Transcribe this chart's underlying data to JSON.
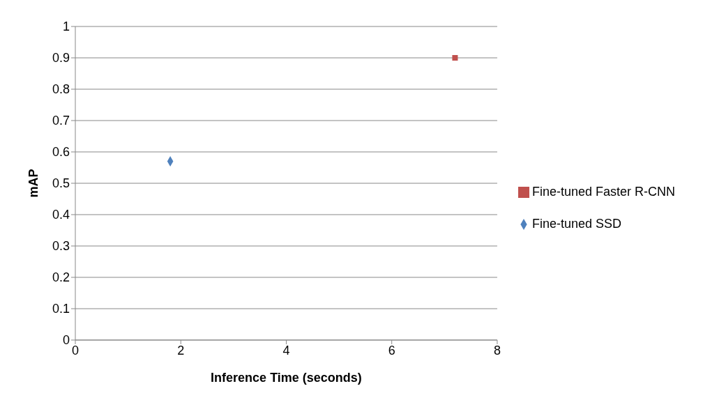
{
  "chart_data": {
    "type": "scatter",
    "xlabel": "Inference Time (seconds)",
    "ylabel": "mAP",
    "xlim": [
      0,
      8
    ],
    "xticks": [
      0,
      2,
      4,
      6,
      8
    ],
    "ylim": [
      0,
      1
    ],
    "yticks": [
      0,
      0.1,
      0.2,
      0.3,
      0.4,
      0.5,
      0.6,
      0.7,
      0.8,
      0.9,
      1
    ],
    "grid": "y",
    "legend": "right",
    "series": [
      {
        "name": "Fine-tuned SSD",
        "color": "#4f81bd",
        "marker": "diamond",
        "x": [
          1.8
        ],
        "values": [
          0.57
        ]
      },
      {
        "name": "Fine-tuned Faster R-CNN",
        "color": "#c0504d",
        "marker": "square",
        "x": [
          7.2
        ],
        "values": [
          0.9
        ]
      }
    ]
  }
}
